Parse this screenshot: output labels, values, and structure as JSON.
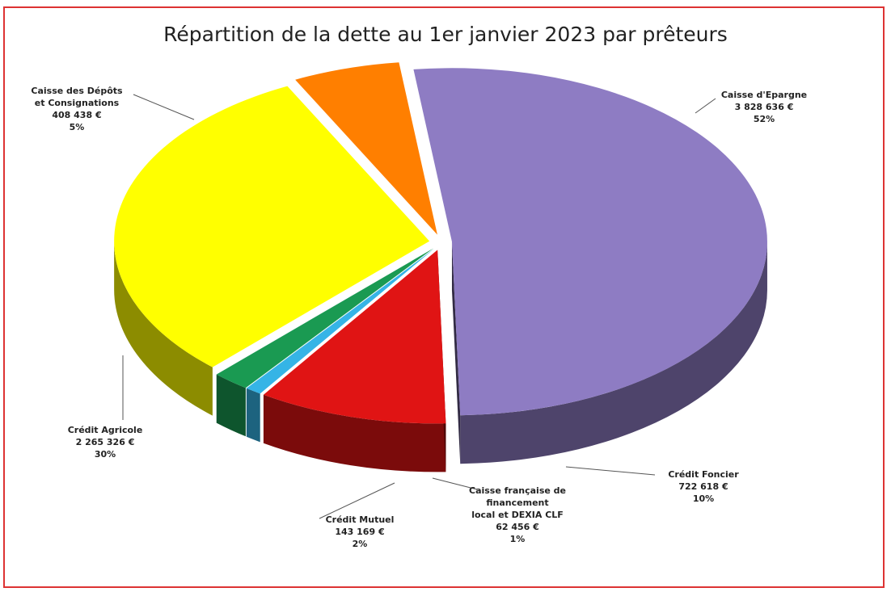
{
  "chart_data": {
    "type": "pie",
    "title": "Répartition de la dette au 1er janvier 2023 par prêteurs",
    "categories": [
      "Caisse d'Epargne",
      "Crédit Foncier",
      "Caisse française de\nfinancement\nlocal  et DEXIA  CLF",
      "Crédit Mutuel",
      "Crédit Agricole",
      "Caisse des Dépôts\net Consignations"
    ],
    "values": [
      3828636,
      722618,
      62456,
      143169,
      2265326,
      408438
    ],
    "value_labels": [
      "3 828 636 €",
      "722 618 €",
      "62 456 €",
      "143 169 €",
      "2 265 326 €",
      "408 438 €"
    ],
    "percent_labels": [
      "52%",
      "10%",
      "1%",
      "2%",
      "30%",
      "5%"
    ],
    "colors": [
      "#8e7cc3",
      "#e01414",
      "#35b4e6",
      "#1a9a52",
      "#ffff00",
      "#ff7f00"
    ]
  }
}
